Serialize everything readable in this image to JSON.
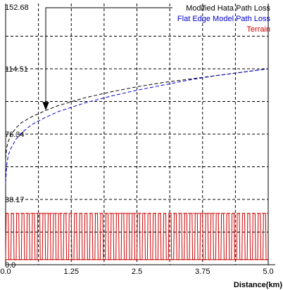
{
  "chart_data": {
    "type": "line",
    "xlabel": "Distance(km)",
    "x_ticks": [
      "0.0",
      "1.25",
      "2.5",
      "3.75",
      "5.0"
    ],
    "y_ticks": [
      "0.0",
      "38.17",
      "76.34",
      "114.51",
      "152.68"
    ],
    "xlim": [
      0,
      5.0
    ],
    "ylim": [
      0,
      152.68
    ],
    "grid": true,
    "legend_position": "top-right",
    "series": [
      {
        "name": "Modified Hata  Path Loss",
        "color": "#000000",
        "style": "dashed",
        "x": [
          0.0,
          0.02,
          0.05,
          0.1,
          0.2,
          0.3,
          0.5,
          0.75,
          1.0,
          1.5,
          2.0,
          2.5,
          3.0,
          3.5,
          4.0,
          4.5,
          5.0
        ],
        "y": [
          62.0,
          68.5,
          72.0,
          76.0,
          80.0,
          83.0,
          86.5,
          90.0,
          93.0,
          97.5,
          101.0,
          104.0,
          106.5,
          108.5,
          110.5,
          112.5,
          114.51
        ]
      },
      {
        "name": "Flat Edge Model  Path Loss",
        "color": "#0000cc",
        "style": "dashed",
        "x": [
          0.0,
          0.02,
          0.05,
          0.1,
          0.2,
          0.3,
          0.5,
          0.75,
          1.0,
          1.5,
          2.0,
          2.5,
          3.0,
          3.5,
          4.0,
          4.5,
          5.0
        ],
        "y": [
          48.0,
          58.0,
          64.0,
          68.0,
          73.5,
          77.0,
          82.0,
          86.0,
          89.5,
          94.5,
          98.5,
          102.0,
          105.0,
          108.0,
          110.5,
          112.5,
          114.51
        ]
      },
      {
        "name": "Terrain",
        "color": "#cc0000",
        "style": "solid",
        "x_range": [
          0,
          5.0
        ],
        "low": 3.0,
        "high": 30.0,
        "cycles": 50
      }
    ]
  },
  "annotation": {
    "points_to_series": "Modified Hata  Path Loss",
    "at_x": 0.75
  }
}
